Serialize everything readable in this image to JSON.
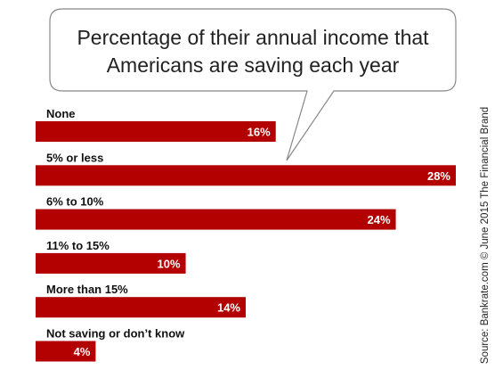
{
  "chart_data": {
    "type": "bar",
    "orientation": "horizontal",
    "title_lines": [
      "Percentage of their annual income that",
      "Americans are saving each year"
    ],
    "categories": [
      "None",
      "5% or less",
      "6% to 10%",
      "11% to 15%",
      "More than 15%",
      "Not saving or don’t know"
    ],
    "values": [
      16,
      28,
      24,
      10,
      14,
      4
    ],
    "value_labels": [
      "16%",
      "28%",
      "24%",
      "10%",
      "14%",
      "4%"
    ],
    "xlabel": "",
    "ylabel": "",
    "xlim": [
      0,
      28
    ],
    "grid": false,
    "legend": "none",
    "bar_color": "#b30000",
    "source": "Source: Bankrate.com © June 2015 The Financial Brand"
  }
}
